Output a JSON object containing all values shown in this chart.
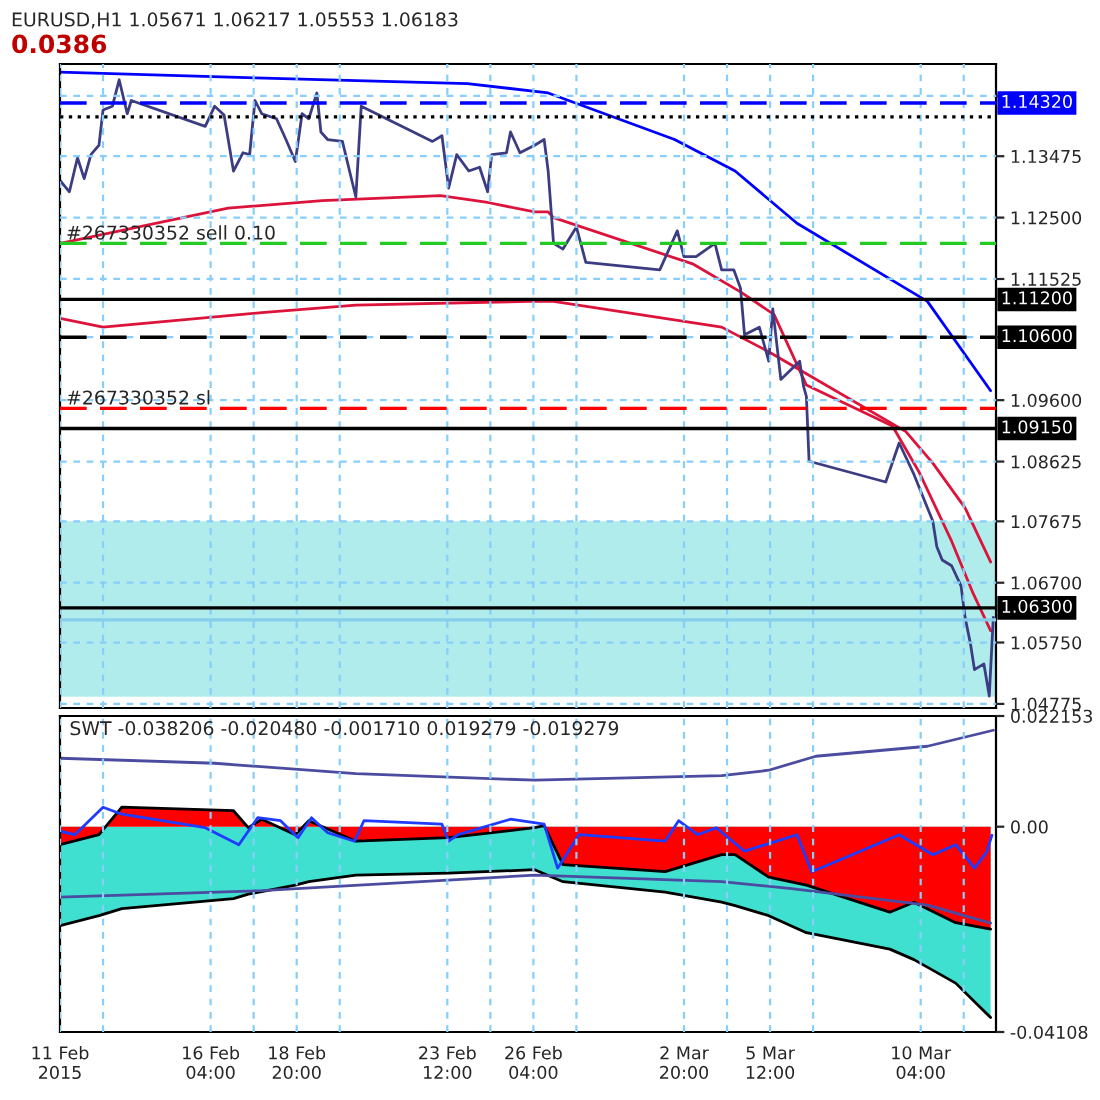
{
  "chart_data": [
    {
      "type": "line",
      "title": "EURUSD,H1 1.05671 1.06217 1.05553 1.06183",
      "annotations": [
        "0.0386",
        {
          "text": "#267330352 sell 0.10",
          "x": "2015-02-11T12:00",
          "y": 1.1209
        },
        {
          "text": "#267330352 sl",
          "x": "2015-02-11T12:00",
          "y": 1.0947
        }
      ],
      "xlim": [
        "2015-02-11T12:00",
        "2015-03-12T12:00"
      ],
      "xticks": [
        {
          "value": "2015-02-11T12:00",
          "label": null
        },
        {
          "value": "2015-02-12T20:00",
          "label": null
        },
        {
          "value": "2015-02-16T04:00",
          "label": null
        },
        {
          "value": "2015-02-17T12:00",
          "label": null
        },
        {
          "value": "2015-02-18T20:00",
          "label": null
        },
        {
          "value": "2015-02-20T04:00",
          "label": null
        },
        {
          "value": "2015-02-23T12:00",
          "label": null
        },
        {
          "value": "2015-02-24T20:00",
          "label": null
        },
        {
          "value": "2015-02-26T04:00",
          "label": null
        },
        {
          "value": "2015-02-27T12:00",
          "label": null
        },
        {
          "value": "2015-03-02T20:00",
          "label": null
        },
        {
          "value": "2015-03-04T04:00",
          "label": null
        },
        {
          "value": "2015-03-05T12:00",
          "label": null
        },
        {
          "value": "2015-03-06T20:00",
          "label": null
        },
        {
          "value": "2015-03-10T04:00",
          "label": null
        },
        {
          "value": "2015-03-11T12:00",
          "label": null
        }
      ],
      "tick_labels": "y",
      "ylim": [
        1.0471,
        1.1494
      ],
      "yticks": [
        {
          "value": 1.14435,
          "label": null
        },
        1.13475,
        {
          "value": 1.125,
          "label": "1.12500"
        },
        1.11525,
        {
          "value": 1.106,
          "label": null
        },
        {
          "value": 1.096,
          "label": "1.09600"
        },
        1.08625,
        1.07675,
        {
          "value": 1.067,
          "label": "1.06700"
        },
        {
          "value": 1.0575,
          "label": "1.05750"
        },
        1.04775
      ],
      "grid": true,
      "bands": [
        {
          "axis": "y",
          "from": 1.0489,
          "to": 1.07675,
          "label": null,
          "color": "#b0ecec"
        }
      ],
      "ref_lines": [
        {
          "axis": "y",
          "value": 1.1432,
          "label": "1.14320",
          "color": "#0000ff",
          "line_style": "dashed"
        },
        {
          "axis": "y",
          "value": 1.141,
          "label": null,
          "color": "#000000",
          "line_style": "dotted"
        },
        {
          "axis": "y",
          "value": 1.1209,
          "label": null,
          "color": "#22cc22",
          "line_style": "dashed"
        },
        {
          "axis": "y",
          "value": 1.112,
          "label": "1.11200",
          "color": "#000000",
          "line_style": "solid"
        },
        {
          "axis": "y",
          "value": 1.106,
          "label": "1.10600",
          "color": "#000000",
          "line_style": "dashed"
        },
        {
          "axis": "y",
          "value": 1.0947,
          "label": null,
          "color": "#ff0000",
          "line_style": "dashed"
        },
        {
          "axis": "y",
          "value": 1.0915,
          "label": "1.09150",
          "color": "#000000",
          "line_style": "solid"
        },
        {
          "axis": "y",
          "value": 1.0611,
          "label": null,
          "color": "#87ceeb",
          "line_style": "solid"
        },
        {
          "axis": "y",
          "value": 1.063,
          "label": "1.06300",
          "color": "#000000",
          "line_style": "solid"
        }
      ],
      "series": [
        {
          "color": "#dc143c",
          "x": [
            "2015-02-11T12:00",
            "2015-02-16T17:00",
            "2015-02-19T15:00",
            "2015-02-23T07:00",
            "2015-02-24T18:00",
            "2015-02-26T05:00",
            "2015-02-26T15:00",
            "2015-02-26T19:00",
            "2015-03-03T03:00",
            "2015-03-04T14:00",
            "2015-03-05T15:00",
            "2015-03-06T15:00",
            "2015-03-09T07:00",
            "2015-03-10T03:00",
            "2015-03-11T03:00",
            "2015-03-11T19:00",
            "2015-03-12T08:00"
          ],
          "values": [
            1.1209,
            1.1265,
            1.1277,
            1.1285,
            1.1274,
            1.1259,
            1.1259,
            1.125,
            1.1176,
            1.1132,
            1.1096,
            1.0984,
            1.0919,
            1.0845,
            1.0736,
            1.0653,
            1.0594
          ]
        },
        {
          "color": "#dc143c",
          "x": [
            "2015-02-11T12:00",
            "2015-02-12T20:00",
            "2015-02-17T18:00",
            "2015-02-20T16:00",
            "2015-02-26T01:00",
            "2015-02-26T19:00",
            "2015-03-04T00:00",
            "2015-03-05T11:00",
            "2015-03-06T15:00",
            "2015-03-09T17:00",
            "2015-03-10T13:00",
            "2015-03-11T13:00",
            "2015-03-12T08:00"
          ],
          "values": [
            1.109,
            1.1076,
            1.1099,
            1.1111,
            1.1117,
            1.1117,
            1.1076,
            1.1037,
            1.1002,
            1.091,
            1.086,
            1.0789,
            1.0703
          ]
        },
        {
          "color": "#0000ff",
          "x": [
            "2015-02-11T12:00",
            "2015-02-17T13:00",
            "2015-02-24T03:00",
            "2015-02-26T15:00",
            "2015-03-02T13:00",
            "2015-03-04T10:00",
            "2015-03-06T08:00",
            "2015-03-10T09:00",
            "2015-03-12T08:00"
          ],
          "values": [
            1.1481,
            1.1472,
            1.1463,
            1.1448,
            1.1374,
            1.1324,
            1.1241,
            1.1117,
            1.0975
          ]
        },
        {
          "color": "#3c3c82",
          "x": [
            "2015-02-11T12:00",
            "2015-02-11T19:00",
            "2015-02-12T01:00",
            "2015-02-12T06:00",
            "2015-02-12T11:00",
            "2015-02-12T17:00",
            "2015-02-12T20:00",
            "2015-02-13T03:00",
            "2015-02-13T08:00",
            "2015-02-13T14:00",
            "2015-02-13T17:00",
            "2015-02-16T00:00",
            "2015-02-16T07:00",
            "2015-02-16T14:00",
            "2015-02-16T21:00",
            "2015-02-17T04:00",
            "2015-02-17T09:00",
            "2015-02-17T13:00",
            "2015-02-17T18:00",
            "2015-02-18T05:00",
            "2015-02-18T12:00",
            "2015-02-18T19:00",
            "2015-02-19T00:00",
            "2015-02-19T05:00",
            "2015-02-19T11:00",
            "2015-02-19T14:00",
            "2015-02-19T19:00",
            "2015-02-20T06:00",
            "2015-02-20T13:00",
            "2015-02-20T16:00",
            "2015-02-20T20:00",
            "2015-02-23T01:00",
            "2015-02-23T08:00",
            "2015-02-23T13:00",
            "2015-02-23T19:00",
            "2015-02-24T04:00",
            "2015-02-24T12:00",
            "2015-02-24T18:00",
            "2015-02-24T21:00",
            "2015-02-25T08:00",
            "2015-02-25T11:00",
            "2015-02-25T18:00",
            "2015-02-26T05:00",
            "2015-02-26T12:00",
            "2015-02-26T15:00",
            "2015-02-26T19:00",
            "2015-02-27T02:00",
            "2015-02-27T12:00",
            "2015-02-27T19:00",
            "2015-03-02T02:00",
            "2015-03-02T15:00",
            "2015-03-02T20:00",
            "2015-03-03T05:00",
            "2015-03-03T19:00",
            "2015-03-04T00:00",
            "2015-03-04T09:00",
            "2015-03-04T14:00",
            "2015-03-04T17:00",
            "2015-03-05T04:00",
            "2015-03-05T11:00",
            "2015-03-05T14:00",
            "2015-03-05T20:00",
            "2015-03-06T10:00",
            "2015-03-06T13:00",
            "2015-03-06T15:00",
            "2015-03-06T17:00",
            "2015-03-09T02:00",
            "2015-03-09T12:00",
            "2015-03-09T23:00",
            "2015-03-10T09:00",
            "2015-03-10T13:00",
            "2015-03-10T16:00",
            "2015-03-10T20:00",
            "2015-03-11T03:00",
            "2015-03-11T10:00",
            "2015-03-11T13:00",
            "2015-03-11T17:00",
            "2015-03-11T20:00",
            "2015-03-12T03:00",
            "2015-03-12T07:00",
            "2015-03-12T10:00"
          ],
          "values": [
            1.1309,
            1.1291,
            1.1345,
            1.1312,
            1.135,
            1.1365,
            1.1421,
            1.1427,
            1.1469,
            1.1415,
            1.1436,
            1.1395,
            1.1427,
            1.1413,
            1.1324,
            1.1353,
            1.135,
            1.1436,
            1.1415,
            1.1407,
            1.1374,
            1.1339,
            1.1415,
            1.1407,
            1.1448,
            1.1386,
            1.1374,
            1.1371,
            1.1309,
            1.1283,
            1.1427,
            1.1371,
            1.138,
            1.1297,
            1.135,
            1.1324,
            1.133,
            1.1291,
            1.135,
            1.1353,
            1.1386,
            1.1353,
            1.1365,
            1.1374,
            1.1324,
            1.1209,
            1.12,
            1.1235,
            1.1179,
            1.1167,
            1.1229,
            1.1188,
            1.1188,
            1.1209,
            1.1167,
            1.1167,
            1.1138,
            1.1064,
            1.1076,
            1.1022,
            1.1105,
            1.0993,
            1.1022,
            1.0981,
            1.0966,
            1.0863,
            1.083,
            1.0892,
            1.0842,
            1.0789,
            1.0768,
            1.0727,
            1.0706,
            1.0697,
            1.0665,
            1.0615,
            1.0573,
            1.0532,
            1.0541,
            1.049,
            1.0615
          ]
        }
      ]
    },
    {
      "type": "area",
      "title": "SWT -0.038206 -0.020480 -0.001710 0.019279 -0.019279",
      "xlim": [
        "2015-02-11T12:00",
        "2015-03-12T12:00"
      ],
      "xticks": [
        {
          "value": "2015-02-11T12:00",
          "label": "11 Feb 2015"
        },
        {
          "value": "2015-02-12T20:00",
          "label": null
        },
        {
          "value": "2015-02-16T04:00",
          "label": "16 Feb 04:00"
        },
        {
          "value": "2015-02-17T12:00",
          "label": null
        },
        {
          "value": "2015-02-18T20:00",
          "label": "18 Feb 20:00"
        },
        {
          "value": "2015-02-20T04:00",
          "label": null
        },
        {
          "value": "2015-02-23T12:00",
          "label": "23 Feb 12:00"
        },
        {
          "value": "2015-02-24T20:00",
          "label": null
        },
        {
          "value": "2015-02-26T04:00",
          "label": "26 Feb 04:00"
        },
        {
          "value": "2015-02-27T12:00",
          "label": null
        },
        {
          "value": "2015-03-02T20:00",
          "label": "2 Mar 20:00"
        },
        {
          "value": "2015-03-04T04:00",
          "label": null
        },
        {
          "value": "2015-03-05T12:00",
          "label": "5 Mar 12:00"
        },
        {
          "value": "2015-03-06T20:00",
          "label": null
        },
        {
          "value": "2015-03-10T04:00",
          "label": "10 Mar 04:00"
        },
        {
          "value": "2015-03-11T12:00",
          "label": null
        }
      ],
      "ylim": [
        -0.04108,
        0.022153
      ],
      "yticks": [
        0.022153,
        {
          "value": 0,
          "label": "0.00"
        },
        -0.04108
      ],
      "grid": "x",
      "series": [
        {
          "color": "#40e0d0",
          "x": [
            "2015-02-11T12:00",
            "2015-02-12T17:00",
            "2015-02-13T10:00",
            "2015-02-16T21:00",
            "2015-02-17T08:00",
            "2015-02-17T18:00",
            "2015-02-18T19:00",
            "2015-02-19T05:00",
            "2015-02-20T16:00",
            "2015-02-23T13:00",
            "2015-02-26T05:00",
            "2015-02-26T12:00",
            "2015-02-27T02:00",
            "2015-03-02T06:00",
            "2015-03-04T00:00",
            "2015-03-04T10:00",
            "2015-03-05T11:00",
            "2015-03-06T15:00",
            "2015-03-09T05:00",
            "2015-03-09T23:00",
            "2015-03-11T06:00",
            "2015-03-12T08:00"
          ],
          "values": [
            -0.0198,
            -0.0178,
            -0.0164,
            -0.0144,
            -0.0135,
            -0.013,
            -0.0117,
            -0.011,
            -0.0097,
            -0.0093,
            -0.0086,
            -0.0094,
            -0.011,
            -0.0131,
            -0.0151,
            -0.0158,
            -0.0178,
            -0.0212,
            -0.0245,
            -0.0266,
            -0.0313,
            -0.0382
          ]
        },
        {
          "color": "#ff0000",
          "x": [
            "2015-02-11T12:00",
            "2015-02-12T17:00",
            "2015-02-13T10:00",
            "2015-02-16T21:00",
            "2015-02-17T08:00",
            "2015-02-17T18:00",
            "2015-02-18T19:00",
            "2015-02-19T05:00",
            "2015-02-20T16:00",
            "2015-02-23T13:00",
            "2015-02-26T05:00",
            "2015-02-26T12:00",
            "2015-02-27T02:00",
            "2015-03-02T06:00",
            "2015-03-04T00:00",
            "2015-03-04T10:00",
            "2015-03-05T11:00",
            "2015-03-06T15:00",
            "2015-03-09T05:00",
            "2015-03-09T23:00",
            "2015-03-11T06:00",
            "2015-03-12T08:00"
          ],
          "values": [
            -0.0036,
            -0.0016,
            0.0039,
            0.0032,
            -0.0002,
            0.0015,
            -0.0016,
            0.0012,
            -0.0029,
            -0.0022,
            -0.0002,
            0.0002,
            -0.0076,
            -0.009,
            -0.0056,
            -0.0056,
            -0.0101,
            -0.0117,
            -0.0171,
            -0.0151,
            -0.0192,
            -0.0205
          ]
        },
        {
          "type": "line",
          "color": "#4b4ba0",
          "x": [
            "2015-02-11T12:00",
            "2015-02-16T07:00",
            "2015-02-20T16:00",
            "2015-02-26T05:00",
            "2015-03-04T00:00",
            "2015-03-05T11:00",
            "2015-03-06T22:00",
            "2015-03-10T09:00",
            "2015-03-12T10:00"
          ],
          "values": [
            0.0137,
            0.0127,
            0.0106,
            0.0093,
            0.0102,
            0.0113,
            0.0141,
            0.0161,
            0.0193
          ]
        },
        {
          "type": "line",
          "color": "#4b4ba0",
          "x": [
            "2015-02-11T12:00",
            "2015-02-17T18:00",
            "2015-02-26T05:00",
            "2015-03-04T00:00",
            "2015-03-06T04:00",
            "2015-03-10T09:00",
            "2015-03-12T08:00"
          ],
          "values": [
            -0.0141,
            -0.0128,
            -0.0097,
            -0.011,
            -0.0124,
            -0.0157,
            -0.0193
          ]
        },
        {
          "type": "line",
          "color": "#1e3cff",
          "x": [
            "2015-02-11T12:00",
            "2015-02-11T23:00",
            "2015-02-12T20:00",
            "2015-02-13T10:00",
            "2015-02-16T00:00",
            "2015-02-17T01:00",
            "2015-02-17T15:00",
            "2015-02-18T08:00",
            "2015-02-18T21:00",
            "2015-02-19T07:00",
            "2015-02-19T19:00",
            "2015-02-20T15:00",
            "2015-02-20T22:00",
            "2015-02-23T08:00",
            "2015-02-23T13:00",
            "2015-02-23T20:00",
            "2015-02-25T11:00",
            "2015-02-26T12:00",
            "2015-02-26T22:00",
            "2015-02-27T14:00",
            "2015-03-02T06:00",
            "2015-03-02T16:00",
            "2015-03-03T06:00",
            "2015-03-03T20:00",
            "2015-03-04T17:00",
            "2015-03-06T08:00",
            "2015-03-06T19:00",
            "2015-03-09T12:00",
            "2015-03-10T13:00",
            "2015-03-11T06:00",
            "2015-03-11T20:00",
            "2015-03-12T05:00",
            "2015-03-12T09:00"
          ],
          "values": [
            -0.0009,
            -0.0016,
            0.0039,
            0.0025,
            -0.0002,
            -0.0036,
            0.0018,
            0.0012,
            -0.0022,
            0.0018,
            -0.0012,
            -0.0029,
            0.0012,
            0.0005,
            -0.0029,
            -0.0016,
            0.0015,
            0.0005,
            -0.0083,
            -0.0016,
            -0.0029,
            0.0012,
            -0.0016,
            -0.0002,
            -0.0049,
            -0.0016,
            -0.009,
            -0.0016,
            -0.0056,
            -0.0036,
            -0.0083,
            -0.0051,
            -0.0017
          ]
        }
      ]
    }
  ]
}
